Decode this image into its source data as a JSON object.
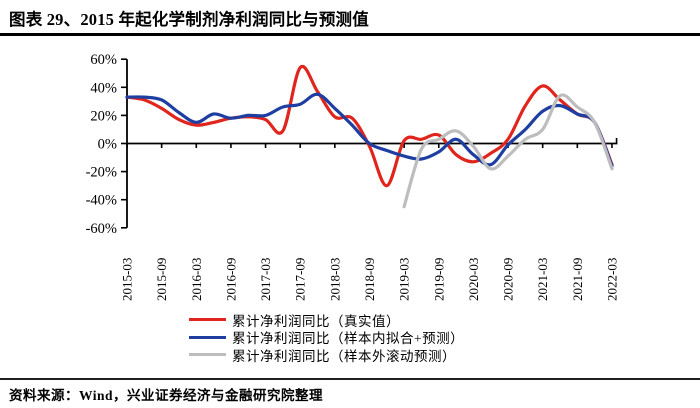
{
  "title": "图表 29、2015 年起化学制剂净利润同比与预测值",
  "source": "资料来源：Wind，兴业证券经济与金融研究院整理",
  "chart_data": {
    "type": "line",
    "x": [
      "2015-03",
      "2015-06",
      "2015-09",
      "2015-12",
      "2016-03",
      "2016-06",
      "2016-09",
      "2016-12",
      "2017-03",
      "2017-06",
      "2017-09",
      "2017-12",
      "2018-03",
      "2018-06",
      "2018-09",
      "2018-12",
      "2019-03",
      "2019-06",
      "2019-09",
      "2019-12",
      "2020-03",
      "2020-06",
      "2020-09",
      "2020-12",
      "2021-03",
      "2021-06",
      "2021-09",
      "2021-12",
      "2022-03"
    ],
    "x_tick_labels": [
      "2015-03",
      "2015-09",
      "2016-03",
      "2016-09",
      "2017-03",
      "2017-09",
      "2018-03",
      "2018-09",
      "2019-03",
      "2019-09",
      "2020-03",
      "2020-09",
      "2021-03",
      "2021-09",
      "2022-03"
    ],
    "y_tick_labels": [
      "60%",
      "40%",
      "20%",
      "0%",
      "-20%",
      "-40%",
      "-60%"
    ],
    "y_ticks": [
      60,
      40,
      20,
      0,
      -20,
      -40,
      -60
    ],
    "ylim": [
      -60,
      60
    ],
    "grid": false,
    "legend_position": "bottom-left",
    "series": [
      {
        "name": "累计净利润同比（真实值）",
        "color": "#E0251C",
        "values": [
          33,
          31,
          25,
          17,
          13,
          15,
          18,
          19,
          17,
          9,
          54,
          37,
          19,
          18,
          -2,
          -30,
          2,
          3,
          6,
          -8,
          -13,
          -7,
          3,
          27,
          41,
          31,
          21,
          15,
          -15
        ]
      },
      {
        "name": "累计净利润同比（样本内拟合+预测）",
        "color": "#1E3FA1",
        "values": [
          33,
          33,
          31,
          22,
          15,
          21,
          18,
          20,
          20,
          26,
          28,
          35,
          25,
          13,
          0,
          -5,
          -9,
          -11,
          -6,
          3,
          -8,
          -15,
          -1,
          10,
          23,
          27,
          21,
          15,
          -16
        ]
      },
      {
        "name": "累计净利润同比（样本外滚动预测）",
        "color": "#BDBDC0",
        "values": [
          null,
          null,
          null,
          null,
          null,
          null,
          null,
          null,
          null,
          null,
          null,
          null,
          null,
          null,
          null,
          null,
          -45,
          -4,
          3,
          9,
          -2,
          -18,
          -9,
          3,
          10,
          34,
          26,
          15,
          -18
        ]
      }
    ]
  }
}
